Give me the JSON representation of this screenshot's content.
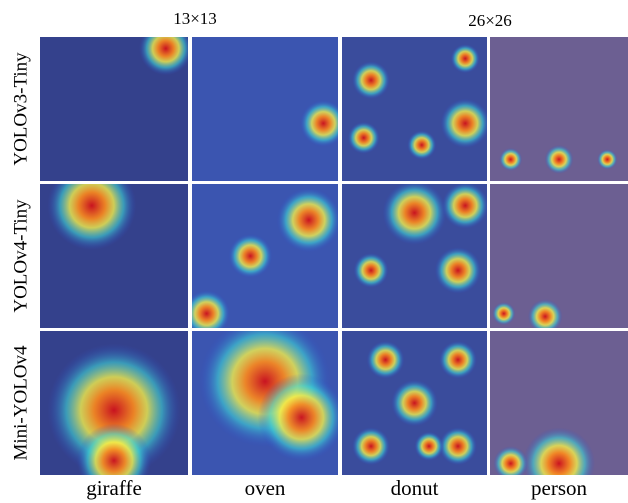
{
  "figure": {
    "scale_labels": [
      "13×13",
      "26×26"
    ],
    "row_labels": [
      "YOLOv3-Tiny",
      "YOLOv4-Tiny",
      "Mini-YOLOv4"
    ],
    "column_labels": [
      "giraffe",
      "oven",
      "donut",
      "person"
    ]
  }
}
